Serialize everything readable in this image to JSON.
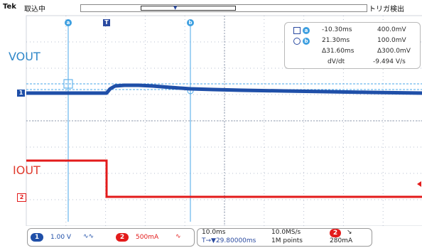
{
  "header": {
    "brand": "Tek",
    "acquisition_status": "取込中",
    "trigger_status": "トリガ検出"
  },
  "markers": {
    "cursor_a": "a",
    "cursor_b": "b",
    "trigger": "T",
    "ch1": "1",
    "ch2": "2"
  },
  "annotations": {
    "vout": "VOUT",
    "iout": "IOUT"
  },
  "cursor_readout": {
    "a_time": "-10.30ms",
    "a_value": "400.0mV",
    "b_time": "21.30ms",
    "b_value": "100.0mV",
    "delta_time": "Δ31.60ms",
    "delta_value": "Δ300.0mV",
    "slope_label": "dV/dt",
    "slope_value": "-9.494 V/s"
  },
  "statusbar": {
    "ch1_badge": "1",
    "ch1_scale": "1.00 V",
    "ch1_bw": "∿∿",
    "ch2_badge": "2",
    "ch2_scale": "500mA",
    "ch2_bw": "∿",
    "time_div": "10.0ms",
    "sample_rate": "10.0MS/s",
    "trigger_position": "T→▼29.80000ms",
    "record_length": "1M points",
    "trigger_source_badge": "2",
    "trigger_slope": "↘",
    "trigger_level": "280mA"
  },
  "colors": {
    "ch1": "#1f4fa8",
    "ch2": "#e31b1b",
    "grid": "#9aa3b8",
    "cursor": "#4aa7e8"
  }
}
